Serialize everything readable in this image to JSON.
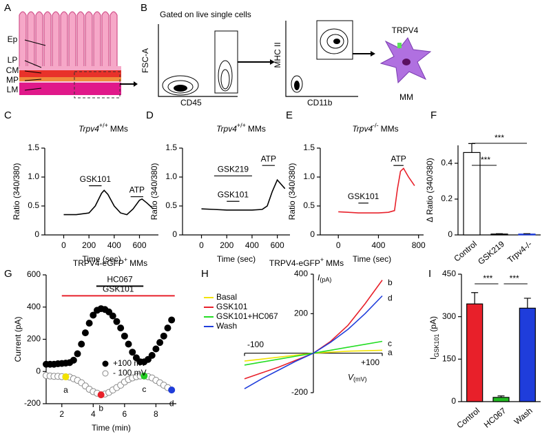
{
  "panel_a": {
    "panel": "A",
    "layers": [
      "Ep",
      "LP",
      "CM",
      "MP",
      "LM"
    ]
  },
  "panel_b": {
    "panel": "B",
    "title": "Gated on live single cells",
    "plot1_y": "FSC-A",
    "plot1_x": "CD45",
    "plot2_y": "MHC II",
    "plot2_x": "CD11b",
    "marker": "TRPV4",
    "cell": "MM"
  },
  "chart_data": [
    {
      "type": "line",
      "panel": "C",
      "title_parts": [
        "Trpv4",
        "+/+",
        "MMs"
      ],
      "x_label": "Time (sec)",
      "y_label": "Ratio (340/380)",
      "x": [
        0,
        100,
        200,
        250,
        300,
        320,
        350,
        400,
        450,
        500,
        550,
        600,
        620,
        660,
        700
      ],
      "series": [
        {
          "color": "#000000",
          "values": [
            0.35,
            0.35,
            0.38,
            0.5,
            0.72,
            0.77,
            0.7,
            0.5,
            0.38,
            0.35,
            0.45,
            0.6,
            0.62,
            0.55,
            0.47
          ]
        }
      ],
      "spans": [
        {
          "label": "GSK101",
          "start": 200,
          "end": 300,
          "level": 0.85
        },
        {
          "label": "ATP",
          "start": 530,
          "end": 630,
          "level": 0.66
        }
      ],
      "xlim": [
        -150,
        750
      ],
      "xticks": [
        0,
        200,
        400,
        600
      ],
      "ylim": [
        0,
        1.5
      ],
      "yticks": [
        0,
        0.5,
        {
          "value": 1,
          "label": "1.0"
        },
        1.5
      ]
    },
    {
      "type": "line",
      "panel": "D",
      "title_parts": [
        "Trpv4",
        "+/+",
        "MMs"
      ],
      "x_label": "Time (sec)",
      "y_label": "Ratio (340/380)",
      "x": [
        0,
        100,
        200,
        300,
        400,
        480,
        520,
        560,
        600,
        620,
        660
      ],
      "series": [
        {
          "color": "#000000",
          "values": [
            0.45,
            0.44,
            0.43,
            0.43,
            0.43,
            0.44,
            0.5,
            0.75,
            0.95,
            0.9,
            0.8
          ]
        }
      ],
      "spans": [
        {
          "label": "GSK219",
          "start": 100,
          "end": 400,
          "level": 1.02
        },
        {
          "label": "GSK101",
          "start": 200,
          "end": 300,
          "level": 0.58
        },
        {
          "label": "ATP",
          "start": 480,
          "end": 580,
          "level": 1.2
        }
      ],
      "xlim": [
        -150,
        700
      ],
      "xticks": [
        0,
        200,
        400,
        600
      ],
      "ylim": [
        0,
        1.5
      ],
      "yticks": [
        0,
        0.5,
        {
          "value": 1,
          "label": "1.0"
        },
        1.5
      ]
    },
    {
      "type": "line",
      "panel": "E",
      "title_parts": [
        "Trpv4",
        "-/-",
        "MMs"
      ],
      "x_label": "Time (sec)",
      "y_label": "Ratio (340/380)",
      "x": [
        0,
        100,
        200,
        300,
        400,
        500,
        560,
        590,
        620,
        650,
        700,
        760
      ],
      "series": [
        {
          "color": "#e8202a",
          "values": [
            0.4,
            0.39,
            0.38,
            0.38,
            0.38,
            0.39,
            0.42,
            0.8,
            1.1,
            1.15,
            1.0,
            0.85
          ]
        }
      ],
      "spans": [
        {
          "label": "GSK101",
          "start": 200,
          "end": 300,
          "level": 0.55
        },
        {
          "label": "ATP",
          "start": 550,
          "end": 650,
          "level": 1.2
        }
      ],
      "xlim": [
        -180,
        850
      ],
      "xticks": [
        0,
        400,
        800
      ],
      "ylim": [
        0,
        1.5
      ],
      "yticks": [
        0,
        0.5,
        {
          "value": 1,
          "label": "1.0"
        },
        1.5
      ]
    },
    {
      "type": "bar",
      "panel": "F",
      "y_label": "Δ Ratio (340/380)",
      "categories": [
        "Control",
        "GSK219",
        "Trpv4-/-"
      ],
      "values": [
        0.46,
        0.005,
        0.005
      ],
      "errors": [
        0.05,
        0.002,
        0.002
      ],
      "fills": [
        "#ffffff",
        "#000000",
        "#1f3ddb"
      ],
      "colors": [
        "#000000",
        "#000000",
        "#1f3ddb"
      ],
      "significance": [
        "***",
        "***"
      ],
      "ylim": [
        0,
        0.5
      ],
      "yticks": [
        0,
        0.2,
        0.4
      ]
    },
    {
      "type": "scatter",
      "panel": "G",
      "title_parts": [
        "TRPV4-eGFP",
        "+",
        "MMs"
      ],
      "x_label": "Time (min)",
      "y_label": "Current (pA)",
      "x": [
        1,
        1.25,
        1.5,
        1.75,
        2,
        2.25,
        2.5,
        2.75,
        3,
        3.25,
        3.5,
        3.75,
        4,
        4.25,
        4.5,
        4.75,
        5,
        5.25,
        5.5,
        5.75,
        6,
        6.25,
        6.5,
        6.75,
        7,
        7.25,
        7.5,
        7.75,
        8,
        8.25,
        8.5,
        8.75,
        9
      ],
      "series": [
        {
          "name": "+100 mV",
          "color": "#000000",
          "fill": "#000000",
          "values": [
            45,
            45,
            45,
            48,
            50,
            52,
            55,
            70,
            110,
            170,
            240,
            300,
            350,
            380,
            390,
            385,
            370,
            345,
            310,
            270,
            220,
            170,
            120,
            85,
            60,
            60,
            75,
            100,
            140,
            180,
            220,
            270,
            320
          ]
        },
        {
          "name": "- 100 mV",
          "color": "#888888",
          "fill": "#ffffff",
          "values": [
            -25,
            -28,
            -30,
            -30,
            -32,
            -33,
            -35,
            -45,
            -55,
            -70,
            -90,
            -110,
            -125,
            -135,
            -145,
            -140,
            -130,
            -115,
            -100,
            -85,
            -65,
            -50,
            -40,
            -32,
            -28,
            -28,
            -32,
            -40,
            -55,
            -70,
            -85,
            -100,
            -115
          ]
        }
      ],
      "highlights": [
        {
          "label": "a",
          "x": 2.25,
          "y": -33,
          "color": "#f2e200"
        },
        {
          "label": "b",
          "x": 4.5,
          "y": -145,
          "color": "#e8202a"
        },
        {
          "label": "c",
          "x": 7.25,
          "y": -28,
          "color": "#22cc22"
        },
        {
          "label": "d",
          "x": 9,
          "y": -115,
          "color": "#1f3ddb"
        }
      ],
      "spans": [
        {
          "label": "HC067",
          "start": 4.2,
          "end": 7.2,
          "level": 530,
          "color": "#000000"
        },
        {
          "label": "GSK101",
          "start": 2,
          "end": 9.2,
          "level": 470,
          "color": "#e8202a"
        }
      ],
      "xlim": [
        1,
        9.3
      ],
      "xticks": [
        2,
        4,
        6,
        8
      ],
      "ylim": [
        -200,
        600
      ],
      "yticks": [
        -200,
        0,
        200,
        400,
        600
      ]
    },
    {
      "type": "line",
      "panel": "H",
      "title_parts": [
        "TRPV4-eGFP",
        "+",
        "MMs"
      ],
      "x_axis_parts": [
        "V",
        "(mV)"
      ],
      "y_axis_parts": [
        "I",
        "(pA)"
      ],
      "x": [
        -100,
        -75,
        -50,
        -25,
        0,
        25,
        50,
        75,
        100
      ],
      "series": [
        {
          "name": "Basal",
          "color": "#f2e200",
          "end_label": "a",
          "values": [
            -40,
            -30,
            -20,
            -10,
            0,
            5,
            10,
            12,
            15
          ]
        },
        {
          "name": "GSK101",
          "color": "#e8202a",
          "end_label": "b",
          "values": [
            -130,
            -100,
            -70,
            -35,
            0,
            60,
            140,
            250,
            370
          ]
        },
        {
          "name": "GSK101+HC067",
          "color": "#22dd22",
          "end_label": "c",
          "values": [
            -60,
            -45,
            -30,
            -15,
            0,
            15,
            30,
            45,
            60
          ]
        },
        {
          "name": "Wash",
          "color": "#1f3ddb",
          "end_label": "d",
          "values": [
            -180,
            -130,
            -85,
            -40,
            0,
            55,
            120,
            200,
            290
          ]
        }
      ],
      "xlim": [
        -100,
        100
      ],
      "xticks": [
        -100,
        {
          "value": 100,
          "label": "+100"
        }
      ],
      "ylim": [
        -200,
        400
      ],
      "yticks": [
        -200,
        200,
        400
      ]
    },
    {
      "type": "bar",
      "panel": "I",
      "y_label_parts": [
        "I",
        "GSK101",
        "(pA)"
      ],
      "categories": [
        "Control",
        "HC067",
        "Wash"
      ],
      "values": [
        345,
        15,
        330
      ],
      "errors": [
        40,
        5,
        35
      ],
      "fills": [
        "#e8202a",
        "#22bb22",
        "#1f3ddb"
      ],
      "colors": [
        "#000000",
        "#000000",
        "#000000"
      ],
      "significance": [
        "***",
        "***"
      ],
      "ylim": [
        0,
        450
      ],
      "yticks": [
        0,
        150,
        300,
        450
      ]
    }
  ]
}
